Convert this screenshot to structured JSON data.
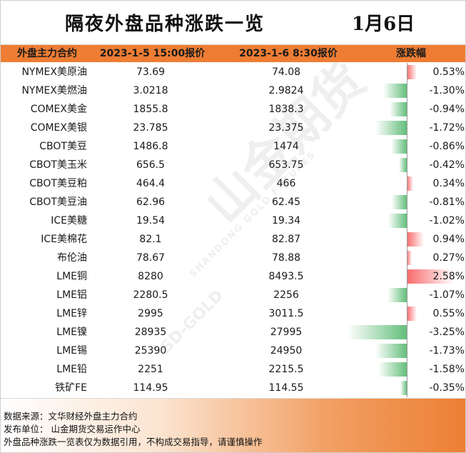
{
  "title": "隔夜外盘品种涨跌一览",
  "date": "1月6日",
  "headers": {
    "name": "外盘主力合约",
    "price1": "2023-1-5 15:00报价",
    "price2": "2023-1-6 8:30报价",
    "change": "涨跌幅"
  },
  "colors": {
    "header_bg": "#ee7d33",
    "rise": "#f8696b",
    "fall": "#63be7b"
  },
  "rows": [
    {
      "name": "NYMEX美原油",
      "p1": "73.69",
      "p2": "74.08",
      "pct": "0.53%",
      "pct_value": 0.53
    },
    {
      "name": "NYMEX美燃油",
      "p1": "3.0218",
      "p2": "2.9824",
      "pct": "-1.30%",
      "pct_value": -1.3
    },
    {
      "name": "COMEX美金",
      "p1": "1855.8",
      "p2": "1838.3",
      "pct": "-0.94%",
      "pct_value": -0.94
    },
    {
      "name": "COMEX美银",
      "p1": "23.785",
      "p2": "23.375",
      "pct": "-1.72%",
      "pct_value": -1.72
    },
    {
      "name": "CBOT美豆",
      "p1": "1486.8",
      "p2": "1474",
      "pct": "-0.86%",
      "pct_value": -0.86
    },
    {
      "name": "CBOT美玉米",
      "p1": "656.5",
      "p2": "653.75",
      "pct": "-0.42%",
      "pct_value": -0.42
    },
    {
      "name": "CBOT美豆粕",
      "p1": "464.4",
      "p2": "466",
      "pct": "0.34%",
      "pct_value": 0.34
    },
    {
      "name": "CBOT美豆油",
      "p1": "62.96",
      "p2": "62.45",
      "pct": "-0.81%",
      "pct_value": -0.81
    },
    {
      "name": "ICE美糖",
      "p1": "19.54",
      "p2": "19.34",
      "pct": "-1.02%",
      "pct_value": -1.02
    },
    {
      "name": "ICE美棉花",
      "p1": "82.1",
      "p2": "82.87",
      "pct": "0.94%",
      "pct_value": 0.94
    },
    {
      "name": "布伦油",
      "p1": "78.67",
      "p2": "78.88",
      "pct": "0.27%",
      "pct_value": 0.27
    },
    {
      "name": "LME铜",
      "p1": "8280",
      "p2": "8493.5",
      "pct": "2.58%",
      "pct_value": 2.58
    },
    {
      "name": "LME铝",
      "p1": "2280.5",
      "p2": "2256",
      "pct": "-1.07%",
      "pct_value": -1.07
    },
    {
      "name": "LME锌",
      "p1": "2995",
      "p2": "3011.5",
      "pct": "0.55%",
      "pct_value": 0.55
    },
    {
      "name": "LME镍",
      "p1": "28935",
      "p2": "27995",
      "pct": "-3.25%",
      "pct_value": -3.25
    },
    {
      "name": "LME锡",
      "p1": "25390",
      "p2": "24950",
      "pct": "-1.73%",
      "pct_value": -1.73
    },
    {
      "name": "LME铅",
      "p1": "2251",
      "p2": "2215.5",
      "pct": "-1.58%",
      "pct_value": -1.58
    },
    {
      "name": "铁矿FE",
      "p1": "114.95",
      "p2": "114.55",
      "pct": "-0.35%",
      "pct_value": -0.35
    }
  ],
  "footer": {
    "source": "数据来源：文华财经外盘主力合约",
    "publisher": "发布单位：  山金期货交易运作中心",
    "disclaimer": "外盘品种涨跌一览表仅为数据引用，不构成交易指导，请谨慎操作"
  },
  "watermark": {
    "brand": "山金期货",
    "english": "SHANDONG GOLD FUTURES",
    "logo": "SD-GOLD"
  }
}
